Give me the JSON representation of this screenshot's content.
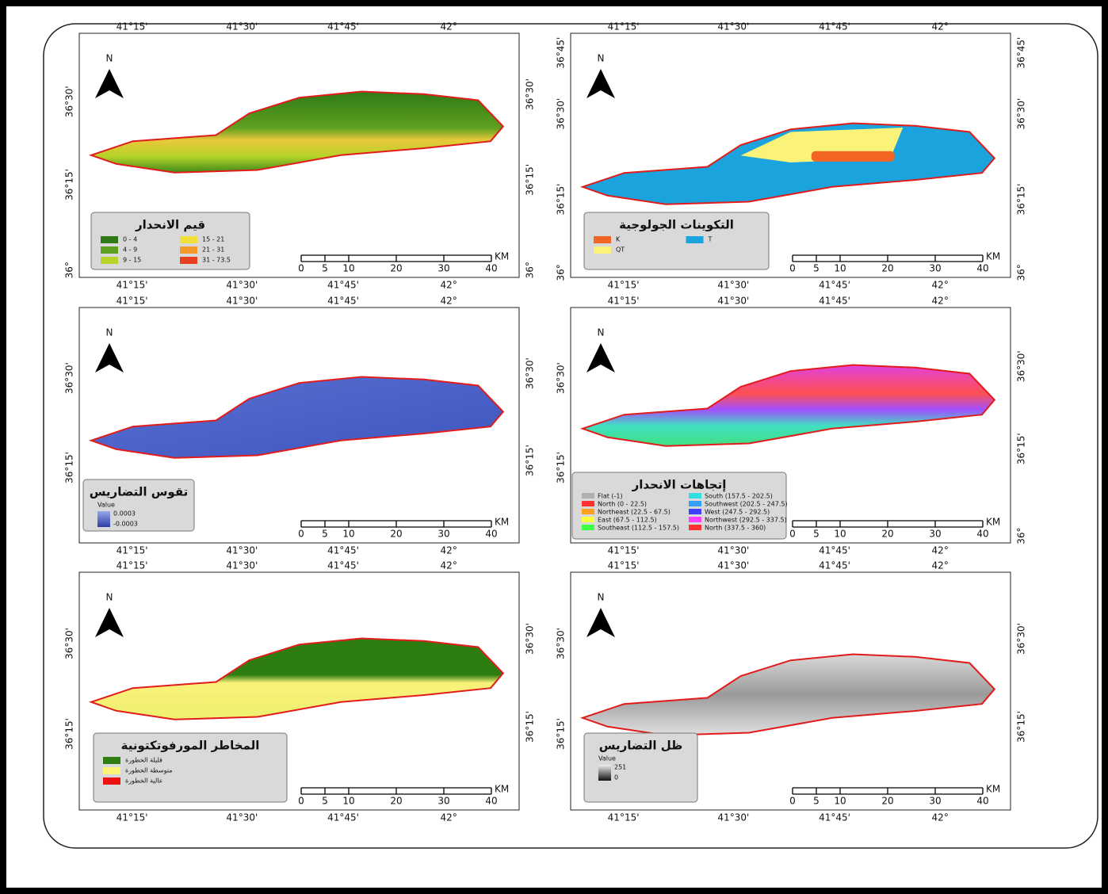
{
  "panels": [
    {
      "title": "قيم الانحدار",
      "north": "N",
      "top_labels": [
        "41°15'",
        "41°30'",
        "41°45'",
        "42°"
      ],
      "bottom_labels": [
        "41°15'",
        "41°30'",
        "41°45'",
        "42°"
      ],
      "left_labels": [
        "36°30'",
        "36°15'",
        "36°"
      ],
      "right_labels": [
        "36°30'",
        "36°15'",
        "36°"
      ],
      "scale_labels": [
        "0",
        "5",
        "10",
        "20",
        "30",
        "40"
      ],
      "scale_unit": "KM",
      "legend": [
        {
          "label": "0 - 4",
          "color": "#2f7a16"
        },
        {
          "label": "15 - 21",
          "color": "#f2df3a"
        },
        {
          "label": "4 - 9",
          "color": "#5ea020"
        },
        {
          "label": "21 - 31",
          "color": "#f39a28"
        },
        {
          "label": "9 - 15",
          "color": "#b6d32a"
        },
        {
          "label": "31 - 73.5",
          "color": "#e8401f"
        }
      ]
    },
    {
      "title": "التكوينات الجولوجية",
      "north": "N",
      "top_labels": [
        "41°15'",
        "41°30'",
        "41°45'",
        "42°"
      ],
      "bottom_labels": [
        "41°15'",
        "41°30'",
        "41°45'",
        "42°"
      ],
      "left_labels": [
        "36°45'",
        "36°30'",
        "36°15'",
        "36°"
      ],
      "right_labels": [
        "36°45'",
        "36°30'",
        "36°15'",
        "36°"
      ],
      "scale_labels": [
        "0",
        "5",
        "10",
        "20",
        "30",
        "40"
      ],
      "scale_unit": "KM",
      "legend": [
        {
          "label": "K",
          "color": "#f26522"
        },
        {
          "label": "T",
          "color": "#1aa3dc"
        },
        {
          "label": "QT",
          "color": "#fbf27a"
        }
      ]
    },
    {
      "title": "تقوس التضاريس",
      "north": "N",
      "top_labels": [
        "41°15'",
        "41°30'",
        "41°45'",
        "42°"
      ],
      "bottom_labels": [
        "41°15'",
        "41°30'",
        "41°45'",
        "42°"
      ],
      "left_labels": [
        "36°30'",
        "36°15'"
      ],
      "right_labels": [
        "36°30'",
        "36°15'"
      ],
      "scale_labels": [
        "0",
        "5",
        "10",
        "20",
        "30",
        "40"
      ],
      "scale_unit": "KM",
      "legend_value": "Value",
      "legend": [
        {
          "label": "0.0003",
          "color": "#9aa8e6"
        },
        {
          "label": "-0.0003",
          "color": "#2a3fa8"
        }
      ]
    },
    {
      "title": "إتجاهات الانحدار",
      "north": "N",
      "top_labels": [
        "41°15'",
        "41°30'",
        "41°45'",
        "42°"
      ],
      "bottom_labels": [
        "41°15'",
        "41°30'",
        "41°45'",
        "42°"
      ],
      "left_labels": [
        "36°30'",
        "36°15'"
      ],
      "right_labels": [
        "36°30'",
        "36°15'",
        "36°"
      ],
      "scale_labels": [
        "0",
        "5",
        "10",
        "20",
        "30",
        "40"
      ],
      "scale_unit": "KM",
      "legend": [
        {
          "label": "Flat (-1)",
          "color": "#b0b0b0"
        },
        {
          "label": "South (157.5 - 202.5)",
          "color": "#30e0e0"
        },
        {
          "label": "North (0 - 22.5)",
          "color": "#ff3030"
        },
        {
          "label": "Southwest (202.5 - 247.5)",
          "color": "#30a0ff"
        },
        {
          "label": "Northeast (22.5 - 67.5)",
          "color": "#ffa020"
        },
        {
          "label": "West (247.5 - 292.5)",
          "color": "#4040ff"
        },
        {
          "label": "East (67.5 - 112.5)",
          "color": "#ffff40"
        },
        {
          "label": "Northwest (292.5 - 337.5)",
          "color": "#ff40ff"
        },
        {
          "label": "Southeast (112.5 - 157.5)",
          "color": "#40ff40"
        },
        {
          "label": "North (337.5 - 360)",
          "color": "#ff3030"
        }
      ]
    },
    {
      "title": "المخاطر المورفوتكتونية",
      "north": "N",
      "top_labels": [
        "41°15'",
        "41°30'",
        "41°45'",
        "42°"
      ],
      "bottom_labels": [
        "41°15'",
        "41°30'",
        "41°45'",
        "42°"
      ],
      "left_labels": [
        "36°30'",
        "36°15'"
      ],
      "right_labels": [
        "36°30'",
        "36°15'"
      ],
      "scale_labels": [
        "0",
        "5",
        "10",
        "20",
        "30",
        "40"
      ],
      "scale_unit": "KM",
      "legend": [
        {
          "label": "قليلة الخطورة",
          "color": "#2e7d10"
        },
        {
          "label": "متوسطة الخطورة",
          "color": "#fbf27a"
        },
        {
          "label": "عالية الخطورة",
          "color": "#ee1111"
        }
      ]
    },
    {
      "title": "ظل التضاريس",
      "north": "N",
      "top_labels": [
        "41°15'",
        "41°30'",
        "41°45'",
        "42°"
      ],
      "bottom_labels": [
        "41°15'",
        "41°30'",
        "41°45'",
        "42°"
      ],
      "left_labels": [
        "36°30'",
        "36°15'"
      ],
      "right_labels": [
        "36°30'",
        "36°15'"
      ],
      "scale_labels": [
        "0",
        "5",
        "10",
        "20",
        "30",
        "40"
      ],
      "scale_unit": "KM",
      "legend_value": "Value",
      "legend": [
        {
          "label": "251",
          "color": "#f0f0f0"
        },
        {
          "label": "0",
          "color": "#111111"
        }
      ]
    }
  ]
}
